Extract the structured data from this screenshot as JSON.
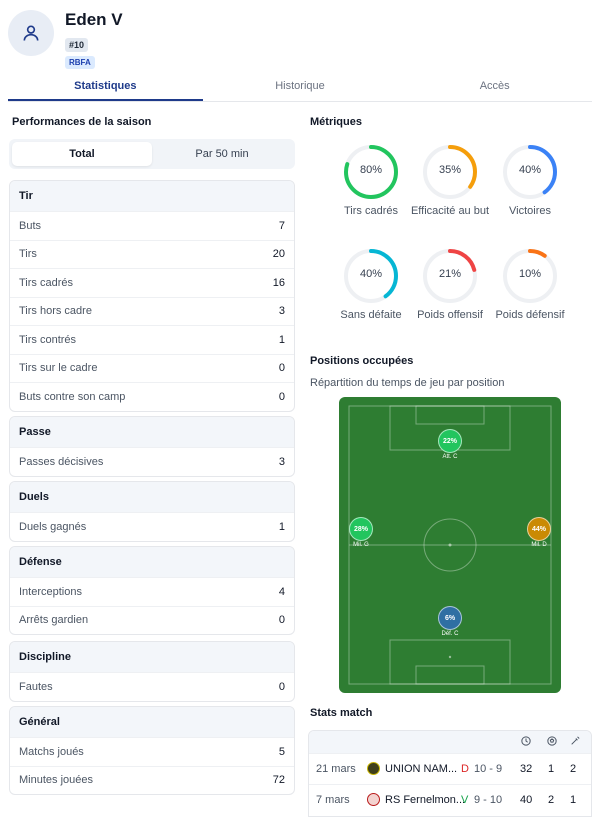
{
  "player": {
    "name": "Eden V",
    "number": "#10",
    "federation": "RBFA"
  },
  "tabs": [
    {
      "label": "Statistiques"
    },
    {
      "label": "Historique"
    },
    {
      "label": "Accès"
    }
  ],
  "season": {
    "title": "Performances de la saison",
    "toggle": {
      "total": "Total",
      "per50": "Par 50 min"
    },
    "groups": [
      {
        "title": "Tir",
        "rows": [
          {
            "label": "Buts",
            "value": "7"
          },
          {
            "label": "Tirs",
            "value": "20"
          },
          {
            "label": "Tirs cadrés",
            "value": "16"
          },
          {
            "label": "Tirs hors cadre",
            "value": "3"
          },
          {
            "label": "Tirs contrés",
            "value": "1"
          },
          {
            "label": "Tirs sur le cadre",
            "value": "0"
          },
          {
            "label": "Buts contre son camp",
            "value": "0"
          }
        ]
      },
      {
        "title": "Passe",
        "rows": [
          {
            "label": "Passes décisives",
            "value": "3"
          }
        ]
      },
      {
        "title": "Duels",
        "rows": [
          {
            "label": "Duels gagnés",
            "value": "1"
          }
        ]
      },
      {
        "title": "Défense",
        "rows": [
          {
            "label": "Interceptions",
            "value": "4"
          },
          {
            "label": "Arrêts gardien",
            "value": "0"
          }
        ]
      },
      {
        "title": "Discipline",
        "rows": [
          {
            "label": "Fautes",
            "value": "0"
          }
        ]
      },
      {
        "title": "Général",
        "rows": [
          {
            "label": "Matchs joués",
            "value": "5"
          },
          {
            "label": "Minutes jouées",
            "value": "72"
          }
        ]
      }
    ]
  },
  "metrics": {
    "title": "Métriques",
    "items": [
      {
        "pct": "80%",
        "fraction": 0.8,
        "label": "Tirs cadrés",
        "color": "#22c55e"
      },
      {
        "pct": "35%",
        "fraction": 0.35,
        "label": "Efficacité au but",
        "color": "#f59e0b"
      },
      {
        "pct": "40%",
        "fraction": 0.4,
        "label": "Victoires",
        "color": "#3b82f6"
      },
      {
        "pct": "40%",
        "fraction": 0.4,
        "label": "Sans défaite",
        "color": "#06b6d4"
      },
      {
        "pct": "21%",
        "fraction": 0.21,
        "label": "Poids offensif",
        "color": "#ef4444"
      },
      {
        "pct": "10%",
        "fraction": 0.1,
        "label": "Poids défensif",
        "color": "#f97316"
      }
    ]
  },
  "positions": {
    "title": "Positions occupées",
    "subtitle": "Répartition du temps de jeu par position",
    "items": [
      {
        "pct": "22%",
        "label": "Att. C",
        "color": "#22c55e"
      },
      {
        "pct": "28%",
        "label": "Mil. G",
        "color": "#22c55e"
      },
      {
        "pct": "44%",
        "label": "Mil. D",
        "color": "#ca8a04"
      },
      {
        "pct": "6%",
        "label": "Déf. C",
        "color": "#2f6fa3"
      }
    ]
  },
  "match_stats": {
    "title": "Stats match",
    "rows": [
      {
        "date": "21 mars",
        "opponent": "UNION NAM...",
        "result": "D",
        "score": "10 - 9",
        "minutes": "32",
        "goals": "1",
        "assists": "2",
        "result_color": "#dc2626"
      },
      {
        "date": "7 mars",
        "opponent": "RS Fernelmon...",
        "result": "V",
        "score": "9 - 10",
        "minutes": "40",
        "goals": "2",
        "assists": "1",
        "result_color": "#16a34a"
      }
    ]
  }
}
